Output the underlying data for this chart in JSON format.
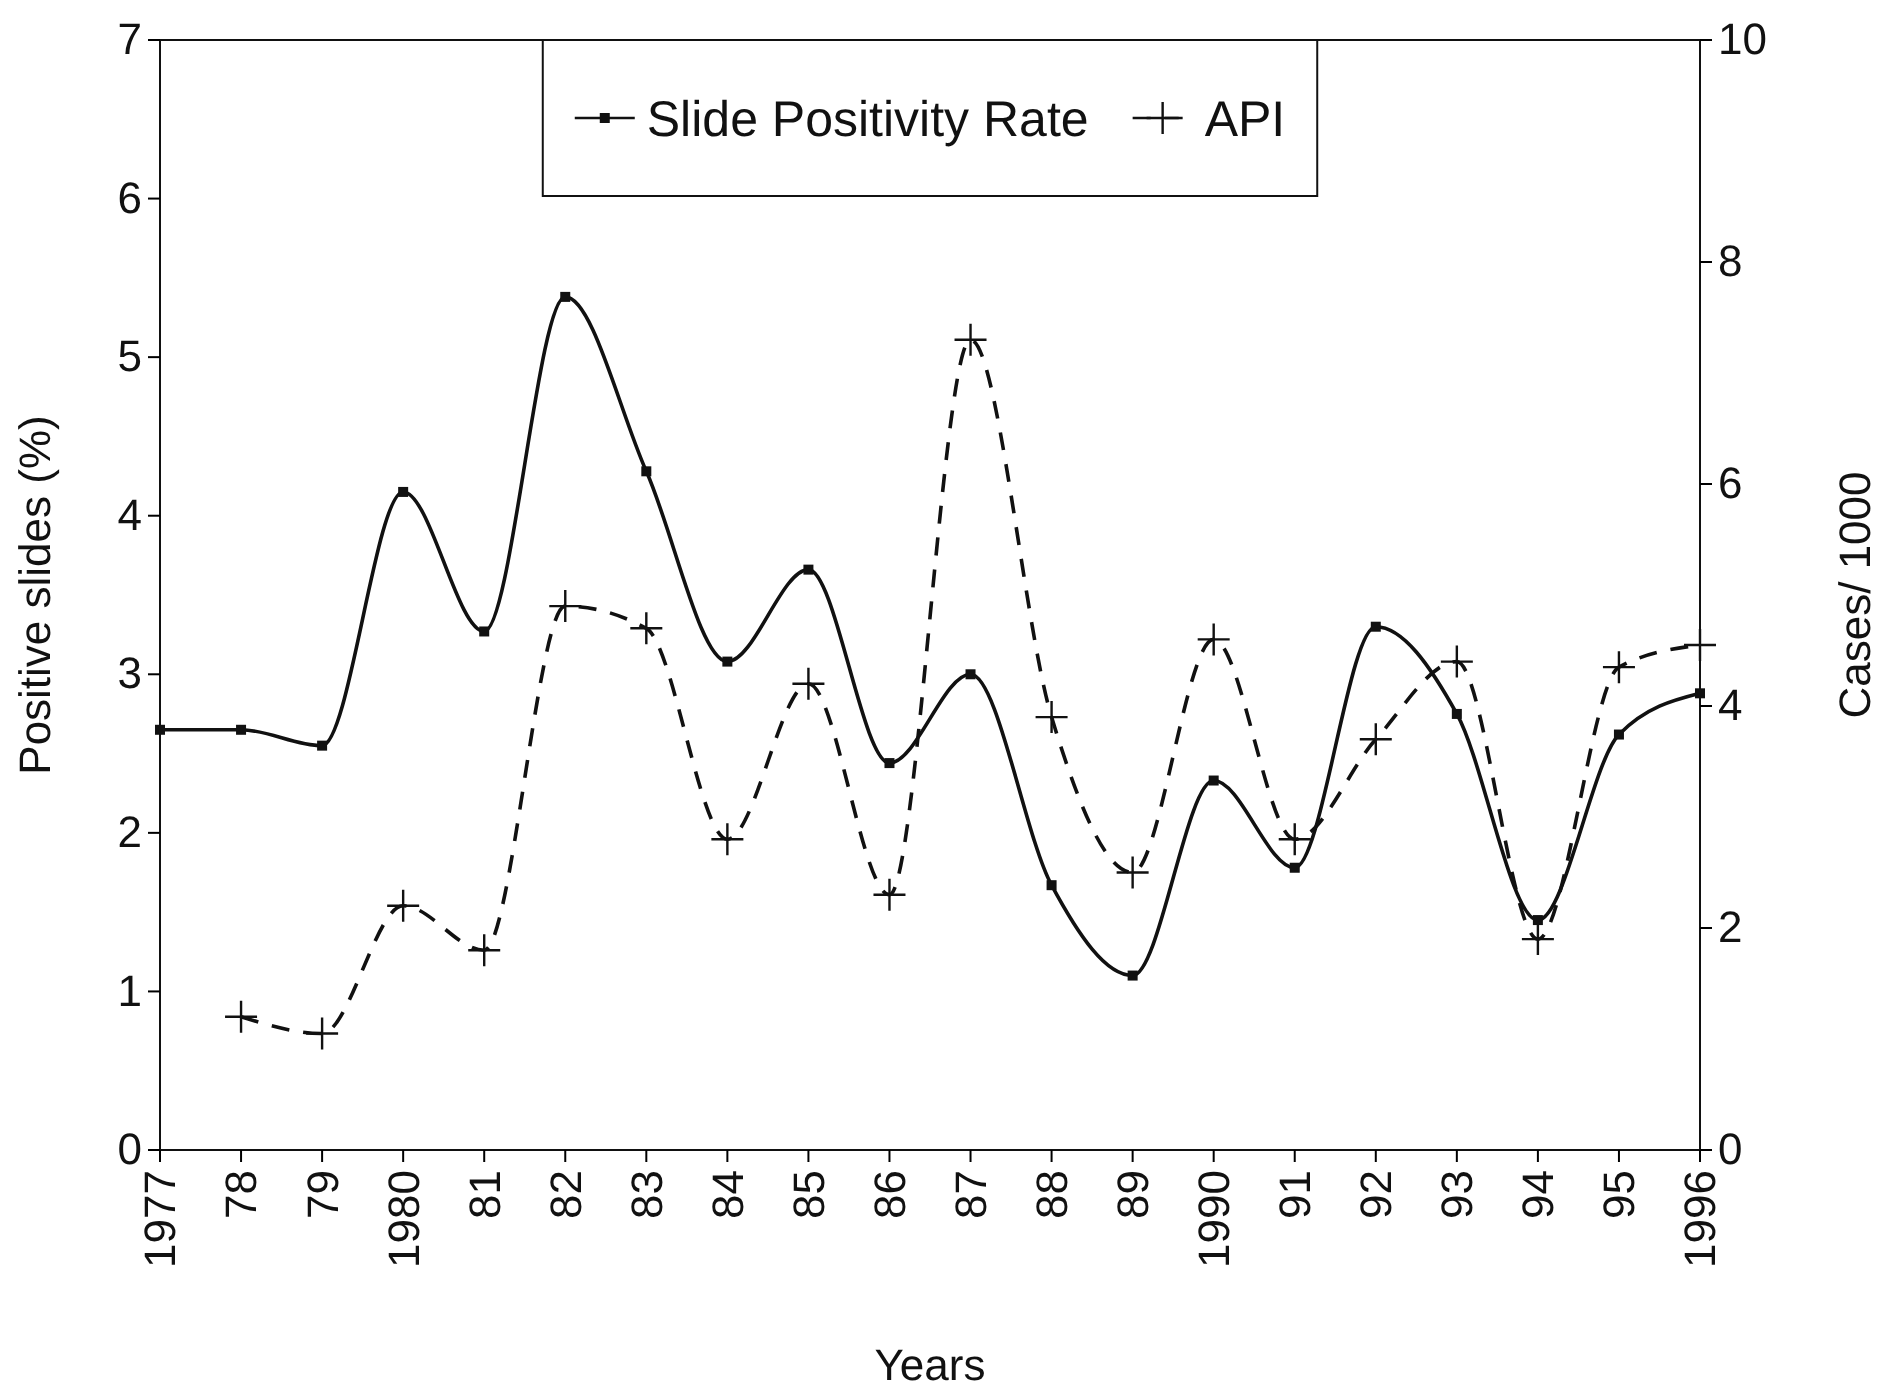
{
  "chart_data": {
    "type": "line",
    "xlabel": "Years",
    "ylabel": "Positive slides (%)",
    "y2label": "Cases/ 1000",
    "x": [
      1977,
      1978,
      1979,
      1980,
      1981,
      1982,
      1983,
      1984,
      1985,
      1986,
      1987,
      1988,
      1989,
      1990,
      1991,
      1992,
      1993,
      1994,
      1995,
      1996
    ],
    "series": [
      {
        "name": "Slide Positivity Rate",
        "color": "#111111",
        "marker": "square",
        "line_style": "solid",
        "values": [
          2.65,
          2.65,
          2.55,
          4.15,
          3.27,
          5.38,
          4.28,
          3.08,
          3.66,
          2.44,
          3.0,
          1.67,
          1.1,
          2.33,
          1.78,
          3.3,
          2.75,
          1.45,
          2.62,
          2.88
        ]
      },
      {
        "name": "API",
        "color": "#111111",
        "marker": "cross",
        "line_style": "dashed",
        "axis": "y2",
        "values": [
          null,
          1.2,
          1.05,
          2.2,
          1.8,
          4.9,
          4.7,
          2.8,
          4.2,
          2.3,
          7.3,
          3.9,
          2.5,
          4.6,
          2.8,
          3.7,
          4.4,
          1.9,
          4.35,
          4.55
        ]
      }
    ],
    "xlim": [
      1977,
      1996
    ],
    "xticks": [
      {
        "value": 1977,
        "label": "1977"
      },
      {
        "value": 1978,
        "label": "78"
      },
      {
        "value": 1979,
        "label": "79"
      },
      {
        "value": 1980,
        "label": "1980"
      },
      {
        "value": 1981,
        "label": "81"
      },
      {
        "value": 1982,
        "label": "82"
      },
      {
        "value": 1983,
        "label": "83"
      },
      {
        "value": 1984,
        "label": "84"
      },
      {
        "value": 1985,
        "label": "85"
      },
      {
        "value": 1986,
        "label": "86"
      },
      {
        "value": 1987,
        "label": "87"
      },
      {
        "value": 1988,
        "label": "88"
      },
      {
        "value": 1989,
        "label": "89"
      },
      {
        "value": 1990,
        "label": "1990"
      },
      {
        "value": 1991,
        "label": "91"
      },
      {
        "value": 1992,
        "label": "92"
      },
      {
        "value": 1993,
        "label": "93"
      },
      {
        "value": 1994,
        "label": "94"
      },
      {
        "value": 1995,
        "label": "95"
      },
      {
        "value": 1996,
        "label": "1996"
      }
    ],
    "ylim": [
      0,
      7
    ],
    "yticks": [
      0,
      1,
      2,
      3,
      4,
      5,
      6,
      7
    ],
    "y2lim": [
      0,
      10
    ],
    "y2ticks": [
      0,
      2,
      4,
      6,
      8,
      10
    ],
    "legend": "top",
    "grid": false
  }
}
